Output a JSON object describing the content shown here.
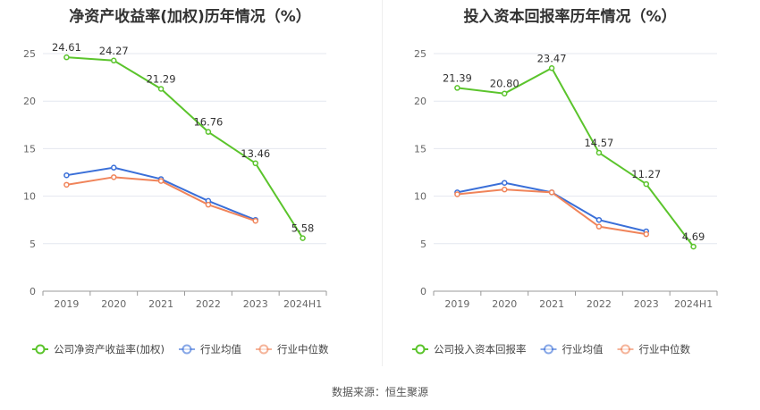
{
  "source_text": "数据来源：恒生聚源",
  "colors": {
    "company": "#5bc42c",
    "industry_avg": "#3a6fd8",
    "industry_median": "#f0845a",
    "grid": "#e4e7ef",
    "axis": "#666666",
    "label": "#333333"
  },
  "chart_data": [
    {
      "type": "line",
      "title": "净资产收益率(加权)历年情况（%）",
      "categories": [
        "2019",
        "2020",
        "2021",
        "2022",
        "2023",
        "2024H1"
      ],
      "ylim": [
        0,
        25
      ],
      "yticks": [
        0,
        5,
        10,
        15,
        20,
        25
      ],
      "grid": true,
      "legend_position": "bottom-left",
      "series": [
        {
          "name": "公司净资产收益率(加权)",
          "key": "company",
          "values": [
            24.61,
            24.27,
            21.29,
            16.76,
            13.46,
            5.58
          ],
          "labels": [
            "24.61",
            "24.27",
            "21.29",
            "16.76",
            "13.46",
            "5.58"
          ]
        },
        {
          "name": "行业均值",
          "key": "industry_avg",
          "values": [
            12.2,
            13.0,
            11.8,
            9.5,
            7.5,
            null
          ]
        },
        {
          "name": "行业中位数",
          "key": "industry_median",
          "values": [
            11.2,
            12.0,
            11.6,
            9.1,
            7.4,
            null
          ]
        }
      ]
    },
    {
      "type": "line",
      "title": "投入资本回报率历年情况（%）",
      "categories": [
        "2019",
        "2020",
        "2021",
        "2022",
        "2023",
        "2024H1"
      ],
      "ylim": [
        0,
        25
      ],
      "yticks": [
        0,
        5,
        10,
        15,
        20,
        25
      ],
      "grid": true,
      "legend_position": "bottom-left",
      "series": [
        {
          "name": "公司投入资本回报率",
          "key": "company",
          "values": [
            21.39,
            20.8,
            23.47,
            14.57,
            11.27,
            4.69
          ],
          "labels": [
            "21.39",
            "20.80",
            "23.47",
            "14.57",
            "11.27",
            "4.69"
          ]
        },
        {
          "name": "行业均值",
          "key": "industry_avg",
          "values": [
            10.4,
            11.4,
            10.4,
            7.5,
            6.3,
            null
          ]
        },
        {
          "name": "行业中位数",
          "key": "industry_median",
          "values": [
            10.2,
            10.7,
            10.4,
            6.8,
            6.0,
            null
          ]
        }
      ]
    }
  ]
}
